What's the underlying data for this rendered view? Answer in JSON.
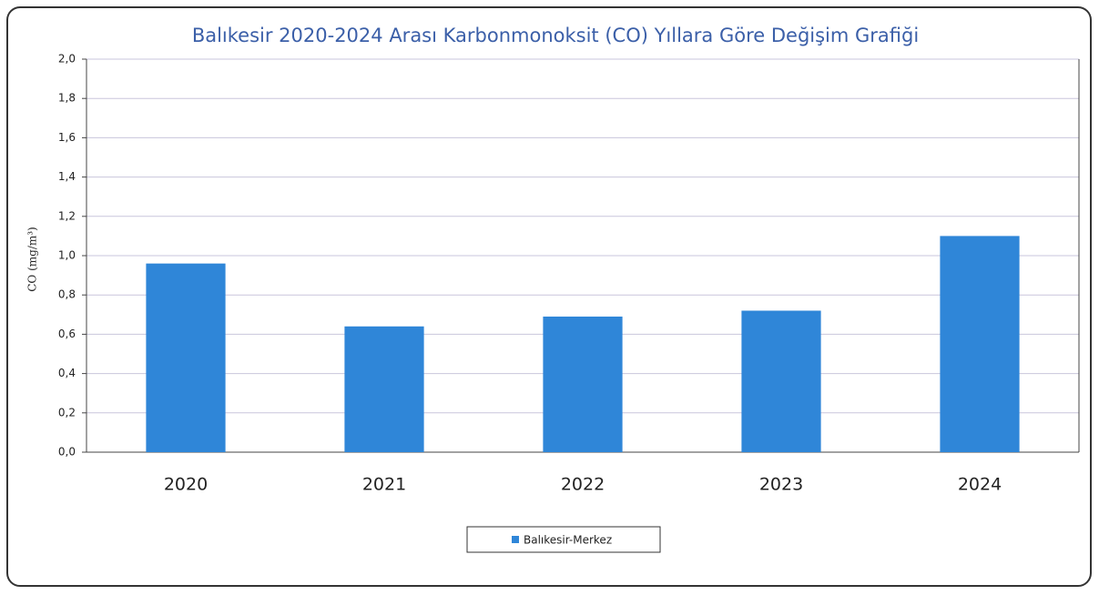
{
  "chart_data": {
    "type": "bar",
    "title": "Balıkesir 2020-2024 Arası Karbonmonoksit (CO) Yıllara Göre Değişim Grafiği",
    "y_label": "CO (mg/m³)",
    "categories": [
      "2020",
      "2021",
      "2022",
      "2023",
      "2024"
    ],
    "series": [
      {
        "name": "Balıkesir-Merkez",
        "color": "#2f86d8",
        "values": [
          0.96,
          0.64,
          0.69,
          0.72,
          1.1
        ]
      }
    ],
    "ylim": [
      0,
      2
    ],
    "yticks": [
      {
        "value": 0,
        "label": "0,0"
      },
      {
        "value": 0.2,
        "label": "0,2"
      },
      {
        "value": 0.4,
        "label": "0,4"
      },
      {
        "value": 0.6,
        "label": "0,6"
      },
      {
        "value": 0.8,
        "label": "0,8"
      },
      {
        "value": 1.0,
        "label": "1,0"
      },
      {
        "value": 1.2,
        "label": "1,2"
      },
      {
        "value": 1.4,
        "label": "1,4"
      },
      {
        "value": 1.6,
        "label": "1,6"
      },
      {
        "value": 1.8,
        "label": "1,8"
      },
      {
        "value": 2.0,
        "label": "2,0"
      }
    ],
    "grid": true,
    "legend": "bottom"
  }
}
